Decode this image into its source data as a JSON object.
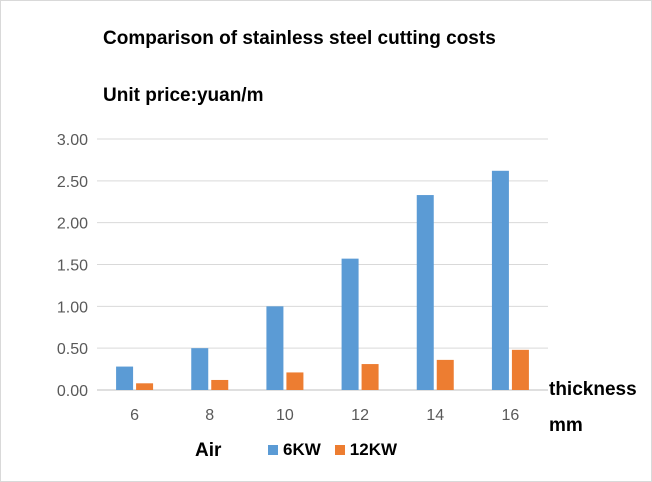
{
  "chart_data": {
    "type": "bar",
    "title": "Comparison of stainless steel cutting costs",
    "ylabel": "Unit price:yuan/m",
    "xlabel_line1": "thickness",
    "xlabel_line2": "mm",
    "legend_title": "Air",
    "categories": [
      "6",
      "8",
      "10",
      "12",
      "14",
      "16"
    ],
    "series": [
      {
        "name": "6KW",
        "color": "#5b9bd5",
        "values": [
          0.28,
          0.5,
          1.0,
          1.57,
          2.33,
          2.62
        ]
      },
      {
        "name": "12KW",
        "color": "#ed7d31",
        "values": [
          0.08,
          0.12,
          0.21,
          0.31,
          0.36,
          0.48
        ]
      }
    ],
    "ylim": [
      0,
      3.0
    ],
    "yticks": [
      "0.00",
      "0.50",
      "1.00",
      "1.50",
      "2.00",
      "2.50",
      "3.00"
    ],
    "grid": true,
    "legend_position": "bottom"
  }
}
